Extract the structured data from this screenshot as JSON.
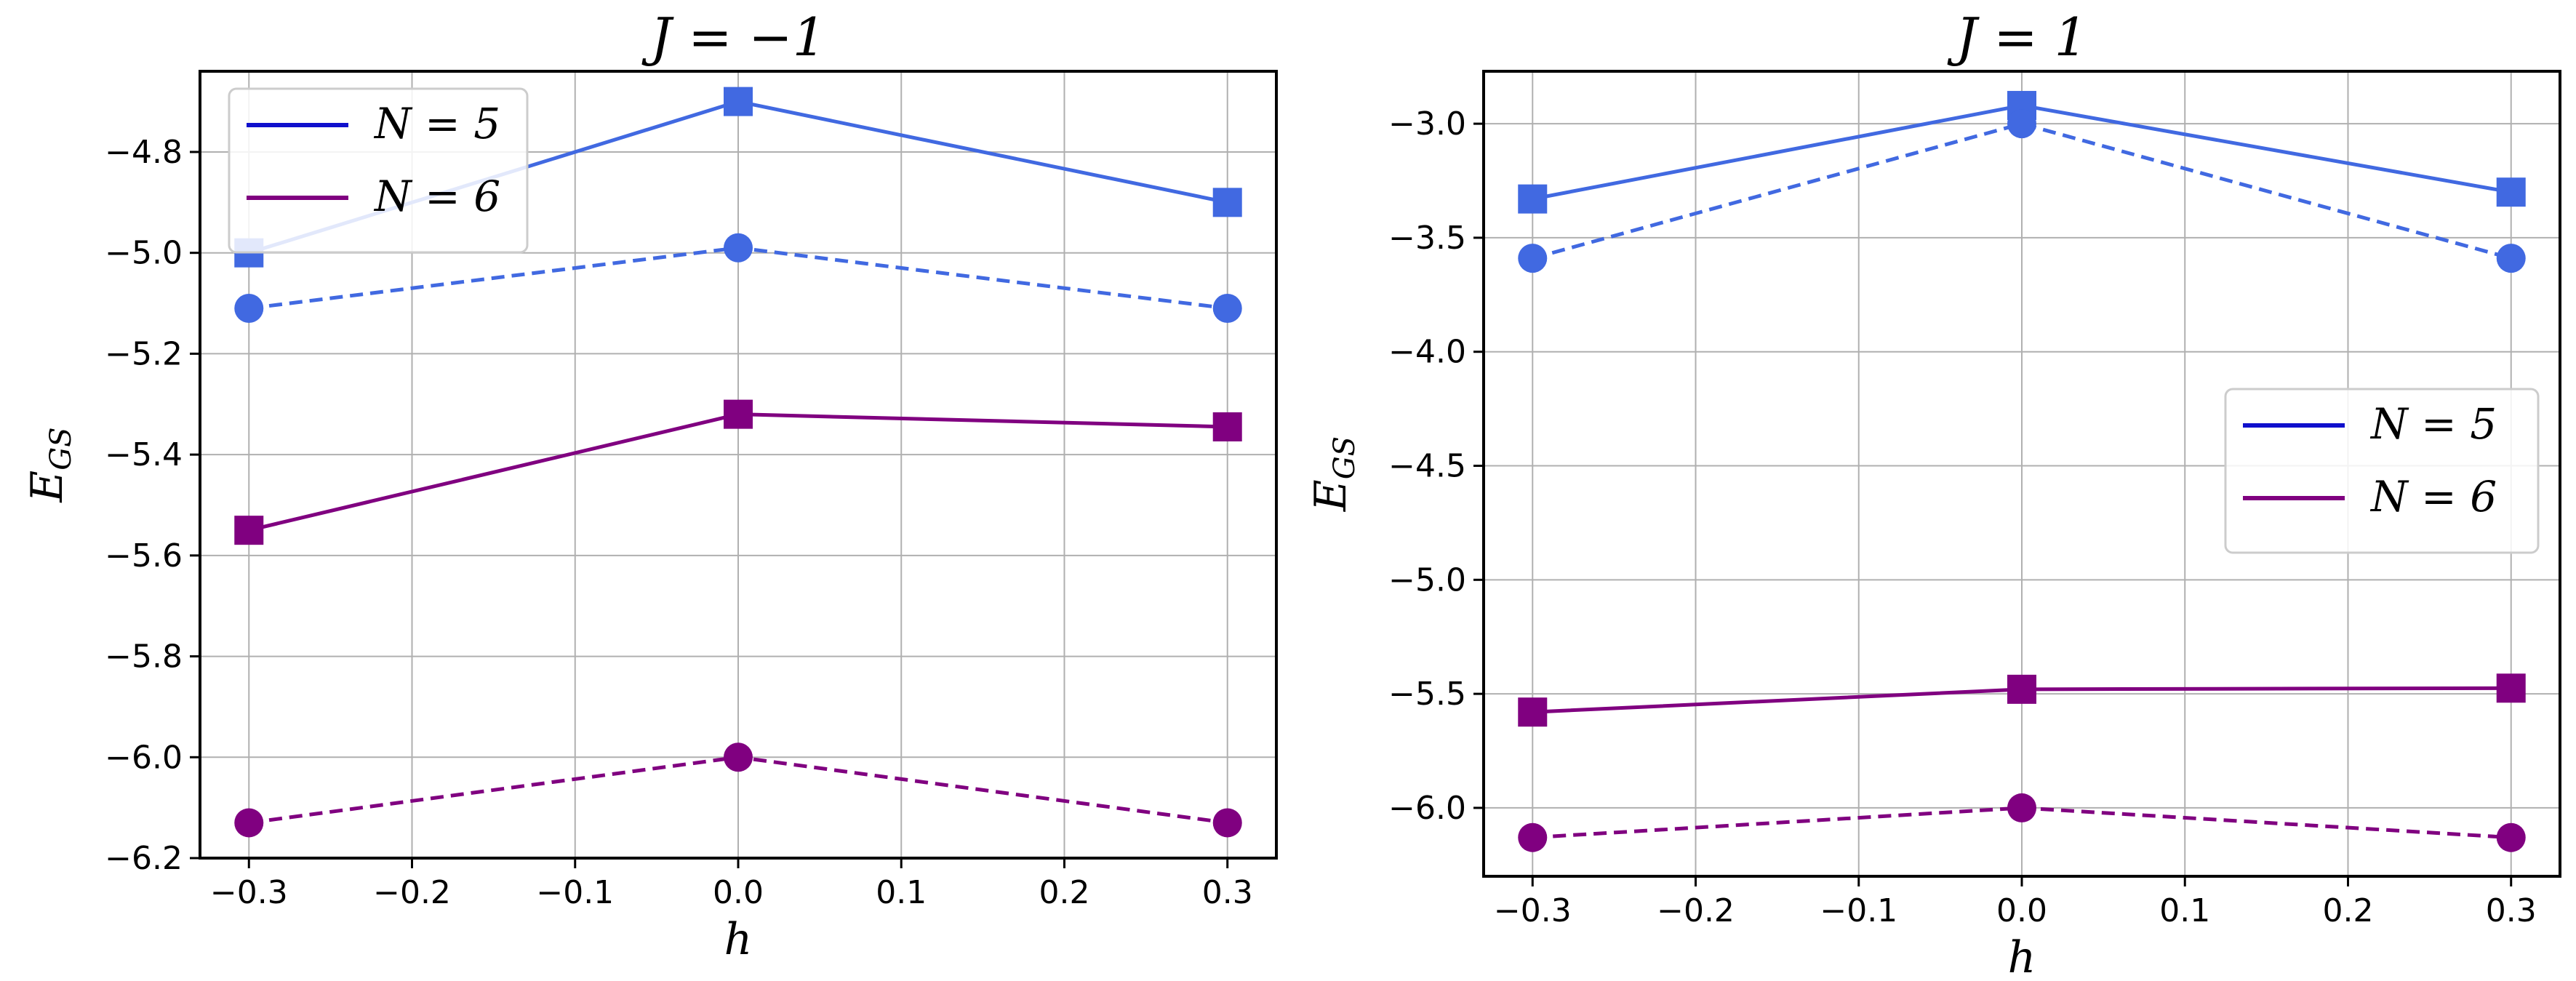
{
  "chart_data": [
    {
      "type": "line",
      "title": "J = −1",
      "xlabel": "h",
      "ylabel": "E_GS",
      "xlim": [
        -0.33,
        0.33
      ],
      "ylim": [
        -6.2,
        -4.64
      ],
      "xticks": [
        -0.3,
        -0.2,
        -0.1,
        0.0,
        0.1,
        0.2,
        0.3
      ],
      "xtick_labels": [
        "−0.3",
        "−0.2",
        "−0.1",
        "0.0",
        "0.1",
        "0.2",
        "0.3"
      ],
      "yticks": [
        -6.2,
        -6.0,
        -5.8,
        -5.6,
        -5.4,
        -5.2,
        -5.0,
        -4.8
      ],
      "ytick_labels": [
        "−6.2",
        "−6.0",
        "−5.8",
        "−5.6",
        "−5.4",
        "−5.2",
        "−5.0",
        "−4.8"
      ],
      "grid": true,
      "legend_position": "top-left",
      "legend": [
        {
          "label": "N = 5",
          "color": "#1010cc"
        },
        {
          "label": "N = 6",
          "color": "#800080"
        }
      ],
      "series": [
        {
          "name": "N = 5 (solid, squares)",
          "color": "#4169e1",
          "linestyle": "solid",
          "marker": "square",
          "x": [
            -0.3,
            0.0,
            0.3
          ],
          "values": [
            -5.0,
            -4.7,
            -4.9
          ]
        },
        {
          "name": "N = 5 (dashed, circles)",
          "color": "#4169e1",
          "linestyle": "dashed",
          "marker": "circle",
          "x": [
            -0.3,
            0.0,
            0.3
          ],
          "values": [
            -5.11,
            -4.99,
            -5.11
          ]
        },
        {
          "name": "N = 6 (solid, squares)",
          "color": "#800080",
          "linestyle": "solid",
          "marker": "square",
          "x": [
            -0.3,
            0.0,
            0.3
          ],
          "values": [
            -5.55,
            -5.32,
            -5.345
          ]
        },
        {
          "name": "N = 6 (dashed, circles)",
          "color": "#800080",
          "linestyle": "dashed",
          "marker": "circle",
          "x": [
            -0.3,
            0.0,
            0.3
          ],
          "values": [
            -6.13,
            -6.0,
            -6.13
          ]
        }
      ]
    },
    {
      "type": "line",
      "title": "J = 1",
      "xlabel": "h",
      "ylabel": "E_GS",
      "xlim": [
        -0.33,
        0.33
      ],
      "ylim": [
        -6.3,
        -2.77
      ],
      "xticks": [
        -0.3,
        -0.2,
        -0.1,
        0.0,
        0.1,
        0.2,
        0.3
      ],
      "xtick_labels": [
        "−0.3",
        "−0.2",
        "−0.1",
        "0.0",
        "0.1",
        "0.2",
        "0.3"
      ],
      "yticks": [
        -6.0,
        -5.5,
        -5.0,
        -4.5,
        -4.0,
        -3.5,
        -3.0
      ],
      "ytick_labels": [
        "−6.0",
        "−5.5",
        "−5.0",
        "−4.5",
        "−4.0",
        "−3.5",
        "−3.0"
      ],
      "grid": true,
      "legend_position": "center-right",
      "legend": [
        {
          "label": "N = 5",
          "color": "#1010cc"
        },
        {
          "label": "N = 6",
          "color": "#800080"
        }
      ],
      "series": [
        {
          "name": "N = 5 (solid, squares)",
          "color": "#4169e1",
          "linestyle": "solid",
          "marker": "square",
          "x": [
            -0.3,
            0.0,
            0.3
          ],
          "values": [
            -3.33,
            -2.92,
            -3.3
          ]
        },
        {
          "name": "N = 5 (dashed, circles)",
          "color": "#4169e1",
          "linestyle": "dashed",
          "marker": "circle",
          "x": [
            -0.3,
            0.0,
            0.3
          ],
          "values": [
            -3.59,
            -3.0,
            -3.59
          ]
        },
        {
          "name": "N = 6 (solid, squares)",
          "color": "#800080",
          "linestyle": "solid",
          "marker": "square",
          "x": [
            -0.3,
            0.0,
            0.3
          ],
          "values": [
            -5.58,
            -5.48,
            -5.475
          ]
        },
        {
          "name": "N = 6 (dashed, circles)",
          "color": "#800080",
          "linestyle": "dashed",
          "marker": "circle",
          "x": [
            -0.3,
            0.0,
            0.3
          ],
          "values": [
            -6.13,
            -6.0,
            -6.13
          ]
        }
      ]
    }
  ]
}
